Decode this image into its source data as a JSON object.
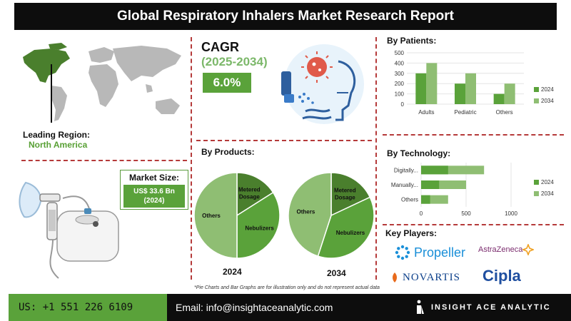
{
  "title": "Global Respiratory Inhalers Market Research Report",
  "leading_region": {
    "label": "Leading Region:",
    "value": "North America"
  },
  "market_size": {
    "title": "Market Size:",
    "value_line1": "US$ 33.6 Bn",
    "value_line2": "(2024)"
  },
  "cagr": {
    "label": "CAGR",
    "years": "(2025-2034)",
    "value": "6.0%"
  },
  "products": {
    "title": "By Products:",
    "charts": [
      {
        "year": "2024",
        "slices": [
          {
            "label": "Metered Dosage",
            "value": 16
          },
          {
            "label": "Nebulizers",
            "value": 34
          },
          {
            "label": "Others",
            "value": 50
          }
        ]
      },
      {
        "year": "2034",
        "slices": [
          {
            "label": "Metered Dosage",
            "value": 18
          },
          {
            "label": "Nebulizers",
            "value": 37
          },
          {
            "label": "Others",
            "value": 45
          }
        ]
      }
    ]
  },
  "colors": {
    "accent_green": "#5aa23a",
    "dark_green": "#4a7f2d",
    "mid_green": "#5aa23a",
    "light_green": "#8fbe73",
    "dash_red": "#b53a3a"
  },
  "chart_data": [
    {
      "type": "bar",
      "title": "By Patients:",
      "categories": [
        "Adults",
        "Pediatric",
        "Others"
      ],
      "series": [
        {
          "name": "2024",
          "values": [
            300,
            200,
            100
          ]
        },
        {
          "name": "2034",
          "values": [
            400,
            300,
            200
          ]
        }
      ],
      "ylim": [
        0,
        500
      ],
      "yticks": [
        "0",
        "100",
        "200",
        "300",
        "400",
        "500"
      ],
      "legend": "right"
    },
    {
      "type": "bar",
      "orientation": "horizontal",
      "title": "By Technology:",
      "categories": [
        "Digitally...",
        "Manually...",
        "Others"
      ],
      "series": [
        {
          "name": "2024",
          "values": [
            300,
            200,
            100
          ]
        },
        {
          "name": "2034",
          "values": [
            700,
            500,
            300
          ]
        }
      ],
      "xlim": [
        0,
        1000
      ],
      "xticks": [
        "0",
        "500",
        "1000"
      ],
      "legend": "right"
    }
  ],
  "key_players": {
    "title": "Key Players:",
    "names": [
      "Propeller",
      "AstraZeneca",
      "NOVARTIS",
      "Cipla"
    ]
  },
  "footnote": "*Pie Charts and Bar Graphs are for illustration only and do not represent actual data",
  "footer": {
    "phone": "US: +1 551 226 6109",
    "email": "Email: info@insightaceanalytic.com",
    "brand": "INSIGHT ACE ANALYTIC"
  }
}
